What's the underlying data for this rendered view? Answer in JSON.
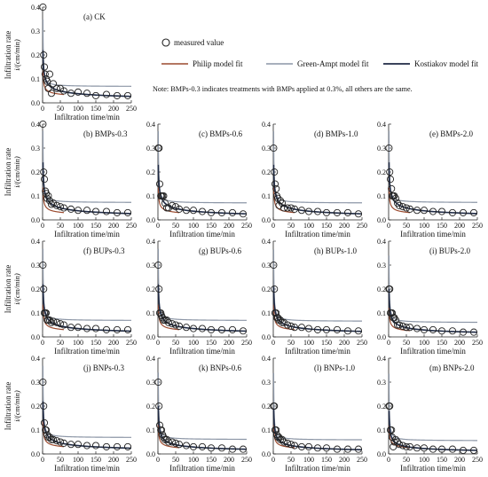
{
  "legend": {
    "measured": "measured  value",
    "philip": "Philip model fit",
    "green": "Green-Ampt model fit",
    "kostiakov": "Kostiakov model fit"
  },
  "note": "Note: BMPs-0.3 indicates treatments with BMPs applied at 0.3%, all others are the same.",
  "colors": {
    "philip": "#9b4a2e",
    "green": "#8c96a6",
    "kostiakov": "#1f2a44",
    "measured": "#222222"
  },
  "axes": {
    "ylabel_line1": "Infiltration rate",
    "ylabel_line2": "i/(cm/min)",
    "xlabel": "Infiltration time/min",
    "xticks": [
      0,
      50,
      100,
      150,
      200,
      250
    ],
    "yticks": [
      0.0,
      0.1,
      0.2,
      0.3,
      0.4
    ],
    "xlim": [
      0,
      250
    ],
    "ylim": [
      0,
      0.4
    ]
  },
  "chart_data": [
    {
      "type": "scatter",
      "title": "(a) CK",
      "x": [
        1,
        3,
        5,
        7,
        10,
        13,
        16,
        20,
        25,
        30,
        40,
        50,
        60,
        80,
        100,
        125,
        150,
        180,
        210,
        240
      ],
      "y": [
        0.4,
        0.2,
        0.15,
        0.12,
        0.1,
        0.09,
        0.06,
        0.12,
        0.04,
        0.08,
        0.06,
        0.06,
        0.05,
        0.04,
        0.045,
        0.04,
        0.03,
        0.035,
        0.03,
        0.03
      ],
      "fits": {
        "philip": {
          "a": 0.02,
          "b": 0.115,
          "xmax": 60
        },
        "green": {
          "a": 0.068,
          "b": 0.28,
          "xmax": 250
        },
        "kostiakov": {
          "a": 0.22,
          "b": 0.38,
          "xmax": 250
        }
      }
    },
    {
      "type": "scatter",
      "title": "(b) BMPs-0.3",
      "x": [
        1,
        3,
        5,
        8,
        10,
        13,
        16,
        20,
        25,
        30,
        40,
        50,
        60,
        80,
        100,
        125,
        150,
        180,
        210,
        240
      ],
      "y": [
        0.4,
        0.2,
        0.17,
        0.12,
        0.11,
        0.09,
        0.1,
        0.08,
        0.065,
        0.07,
        0.06,
        0.055,
        0.05,
        0.045,
        0.04,
        0.04,
        0.035,
        0.035,
        0.03,
        0.03
      ],
      "fits": {
        "philip": {
          "a": 0.015,
          "b": 0.12,
          "xmax": 60
        },
        "green": {
          "a": 0.072,
          "b": 0.3,
          "xmax": 250
        },
        "kostiakov": {
          "a": 0.24,
          "b": 0.4,
          "xmax": 250
        }
      }
    },
    {
      "type": "scatter",
      "title": "(c) BMPs-0.6",
      "x": [
        1,
        3,
        5,
        8,
        10,
        13,
        16,
        20,
        25,
        30,
        40,
        50,
        60,
        80,
        100,
        125,
        150,
        180,
        210,
        240
      ],
      "y": [
        0.3,
        0.3,
        0.15,
        0.1,
        0.1,
        0.1,
        0.1,
        0.07,
        0.05,
        0.05,
        0.06,
        0.055,
        0.045,
        0.04,
        0.04,
        0.035,
        0.03,
        0.03,
        0.03,
        0.025
      ],
      "fits": {
        "philip": {
          "a": 0.015,
          "b": 0.12,
          "xmax": 60
        },
        "green": {
          "a": 0.07,
          "b": 0.3,
          "xmax": 250
        },
        "kostiakov": {
          "a": 0.23,
          "b": 0.4,
          "xmax": 250
        }
      }
    },
    {
      "type": "scatter",
      "title": "(d) BMPs-1.0",
      "x": [
        1,
        3,
        5,
        8,
        10,
        13,
        16,
        20,
        25,
        30,
        40,
        50,
        60,
        80,
        100,
        125,
        150,
        180,
        210,
        240
      ],
      "y": [
        0.3,
        0.2,
        0.15,
        0.13,
        0.1,
        0.09,
        0.06,
        0.08,
        0.07,
        0.05,
        0.05,
        0.05,
        0.045,
        0.04,
        0.035,
        0.035,
        0.03,
        0.03,
        0.03,
        0.025
      ],
      "fits": {
        "philip": {
          "a": 0.015,
          "b": 0.12,
          "xmax": 60
        },
        "green": {
          "a": 0.07,
          "b": 0.3,
          "xmax": 250
        },
        "kostiakov": {
          "a": 0.23,
          "b": 0.4,
          "xmax": 250
        }
      }
    },
    {
      "type": "scatter",
      "title": "(e) BMPs-2.0",
      "x": [
        1,
        3,
        5,
        8,
        10,
        13,
        16,
        20,
        25,
        30,
        40,
        50,
        60,
        80,
        100,
        125,
        150,
        180,
        210,
        240
      ],
      "y": [
        0.3,
        0.2,
        0.17,
        0.13,
        0.1,
        0.1,
        0.1,
        0.09,
        0.07,
        0.06,
        0.055,
        0.05,
        0.045,
        0.04,
        0.04,
        0.035,
        0.035,
        0.03,
        0.03,
        0.03
      ],
      "fits": {
        "philip": {
          "a": 0.015,
          "b": 0.12,
          "xmax": 60
        },
        "green": {
          "a": 0.072,
          "b": 0.3,
          "xmax": 250
        },
        "kostiakov": {
          "a": 0.24,
          "b": 0.4,
          "xmax": 250
        }
      }
    },
    {
      "type": "scatter",
      "title": "(f) BUPs-0.3",
      "x": [
        1,
        3,
        5,
        8,
        10,
        13,
        16,
        20,
        25,
        30,
        40,
        50,
        60,
        80,
        100,
        125,
        150,
        180,
        210,
        240
      ],
      "y": [
        0.3,
        0.2,
        0.1,
        0.1,
        0.1,
        0.07,
        0.07,
        0.07,
        0.06,
        0.065,
        0.06,
        0.055,
        0.05,
        0.04,
        0.04,
        0.035,
        0.035,
        0.03,
        0.03,
        0.03
      ],
      "fits": {
        "philip": {
          "a": 0.015,
          "b": 0.12,
          "xmax": 60
        },
        "green": {
          "a": 0.068,
          "b": 0.3,
          "xmax": 250
        },
        "kostiakov": {
          "a": 0.22,
          "b": 0.4,
          "xmax": 250
        }
      }
    },
    {
      "type": "scatter",
      "title": "(g) BUPs-0.6",
      "x": [
        1,
        3,
        5,
        8,
        10,
        13,
        16,
        20,
        25,
        30,
        40,
        50,
        60,
        80,
        100,
        125,
        150,
        180,
        210,
        240
      ],
      "y": [
        0.3,
        0.2,
        0.1,
        0.1,
        0.09,
        0.08,
        0.07,
        0.07,
        0.07,
        0.06,
        0.055,
        0.05,
        0.045,
        0.04,
        0.035,
        0.035,
        0.03,
        0.03,
        0.03,
        0.025
      ],
      "fits": {
        "philip": {
          "a": 0.015,
          "b": 0.12,
          "xmax": 60
        },
        "green": {
          "a": 0.068,
          "b": 0.3,
          "xmax": 250
        },
        "kostiakov": {
          "a": 0.22,
          "b": 0.4,
          "xmax": 250
        }
      }
    },
    {
      "type": "scatter",
      "title": "(h) BUPs-1.0",
      "x": [
        1,
        3,
        5,
        8,
        10,
        13,
        16,
        20,
        25,
        30,
        40,
        50,
        60,
        80,
        100,
        125,
        150,
        180,
        210,
        240
      ],
      "y": [
        0.3,
        0.2,
        0.1,
        0.1,
        0.08,
        0.08,
        0.07,
        0.07,
        0.06,
        0.06,
        0.05,
        0.045,
        0.04,
        0.04,
        0.035,
        0.03,
        0.03,
        0.03,
        0.025,
        0.025
      ],
      "fits": {
        "philip": {
          "a": 0.015,
          "b": 0.12,
          "xmax": 60
        },
        "green": {
          "a": 0.065,
          "b": 0.3,
          "xmax": 250
        },
        "kostiakov": {
          "a": 0.21,
          "b": 0.4,
          "xmax": 250
        }
      }
    },
    {
      "type": "scatter",
      "title": "(i) BUPs-2.0",
      "x": [
        1,
        3,
        5,
        8,
        10,
        13,
        16,
        20,
        25,
        30,
        40,
        50,
        60,
        80,
        100,
        125,
        150,
        180,
        210,
        240
      ],
      "y": [
        0.2,
        0.2,
        0.1,
        0.1,
        0.1,
        0.08,
        0.08,
        0.07,
        0.05,
        0.05,
        0.045,
        0.04,
        0.04,
        0.035,
        0.03,
        0.03,
        0.025,
        0.025,
        0.02,
        0.02
      ],
      "fits": {
        "philip": {
          "a": 0.012,
          "b": 0.11,
          "xmax": 60
        },
        "green": {
          "a": 0.06,
          "b": 0.28,
          "xmax": 250
        },
        "kostiakov": {
          "a": 0.2,
          "b": 0.42,
          "xmax": 250
        }
      }
    },
    {
      "type": "scatter",
      "title": "(j) BNPs-0.3",
      "x": [
        1,
        3,
        5,
        8,
        10,
        13,
        16,
        20,
        25,
        30,
        40,
        50,
        60,
        80,
        100,
        125,
        150,
        180,
        210,
        240
      ],
      "y": [
        0.3,
        0.2,
        0.13,
        0.1,
        0.1,
        0.08,
        0.07,
        0.07,
        0.06,
        0.06,
        0.055,
        0.05,
        0.045,
        0.04,
        0.04,
        0.035,
        0.035,
        0.03,
        0.03,
        0.03
      ],
      "fits": {
        "philip": {
          "a": 0.015,
          "b": 0.12,
          "xmax": 60
        },
        "green": {
          "a": 0.068,
          "b": 0.3,
          "xmax": 250
        },
        "kostiakov": {
          "a": 0.22,
          "b": 0.4,
          "xmax": 250
        }
      }
    },
    {
      "type": "scatter",
      "title": "(k) BNPs-0.6",
      "x": [
        1,
        3,
        5,
        8,
        10,
        13,
        16,
        20,
        25,
        30,
        40,
        50,
        60,
        80,
        100,
        125,
        150,
        180,
        210,
        240
      ],
      "y": [
        0.3,
        0.2,
        0.12,
        0.1,
        0.1,
        0.08,
        0.07,
        0.06,
        0.06,
        0.05,
        0.05,
        0.045,
        0.04,
        0.035,
        0.03,
        0.03,
        0.025,
        0.025,
        0.02,
        0.02
      ],
      "fits": {
        "philip": {
          "a": 0.012,
          "b": 0.11,
          "xmax": 60
        },
        "green": {
          "a": 0.06,
          "b": 0.28,
          "xmax": 250
        },
        "kostiakov": {
          "a": 0.2,
          "b": 0.42,
          "xmax": 250
        }
      }
    },
    {
      "type": "scatter",
      "title": "(l) BNPs-1.0",
      "x": [
        1,
        3,
        5,
        8,
        10,
        13,
        16,
        20,
        25,
        30,
        40,
        50,
        60,
        80,
        100,
        125,
        150,
        180,
        210,
        240
      ],
      "y": [
        0.2,
        0.2,
        0.1,
        0.1,
        0.08,
        0.07,
        0.07,
        0.06,
        0.06,
        0.05,
        0.045,
        0.04,
        0.035,
        0.03,
        0.03,
        0.025,
        0.025,
        0.02,
        0.02,
        0.02
      ],
      "fits": {
        "philip": {
          "a": 0.012,
          "b": 0.11,
          "xmax": 60
        },
        "green": {
          "a": 0.058,
          "b": 0.28,
          "xmax": 250
        },
        "kostiakov": {
          "a": 0.19,
          "b": 0.43,
          "xmax": 250
        }
      }
    },
    {
      "type": "scatter",
      "title": "(m) BNPs-2.0",
      "x": [
        1,
        3,
        5,
        8,
        10,
        13,
        16,
        20,
        25,
        30,
        40,
        50,
        60,
        80,
        100,
        125,
        150,
        180,
        210,
        240
      ],
      "y": [
        0.2,
        0.2,
        0.1,
        0.1,
        0.07,
        0.03,
        0.05,
        0.06,
        0.05,
        0.04,
        0.035,
        0.03,
        0.03,
        0.025,
        0.025,
        0.02,
        0.02,
        0.02,
        0.015,
        0.015
      ],
      "fits": {
        "philip": {
          "a": 0.012,
          "b": 0.11,
          "xmax": 60
        },
        "green": {
          "a": 0.055,
          "b": 0.28,
          "xmax": 250
        },
        "kostiakov": {
          "a": 0.18,
          "b": 0.45,
          "xmax": 250
        }
      }
    }
  ]
}
